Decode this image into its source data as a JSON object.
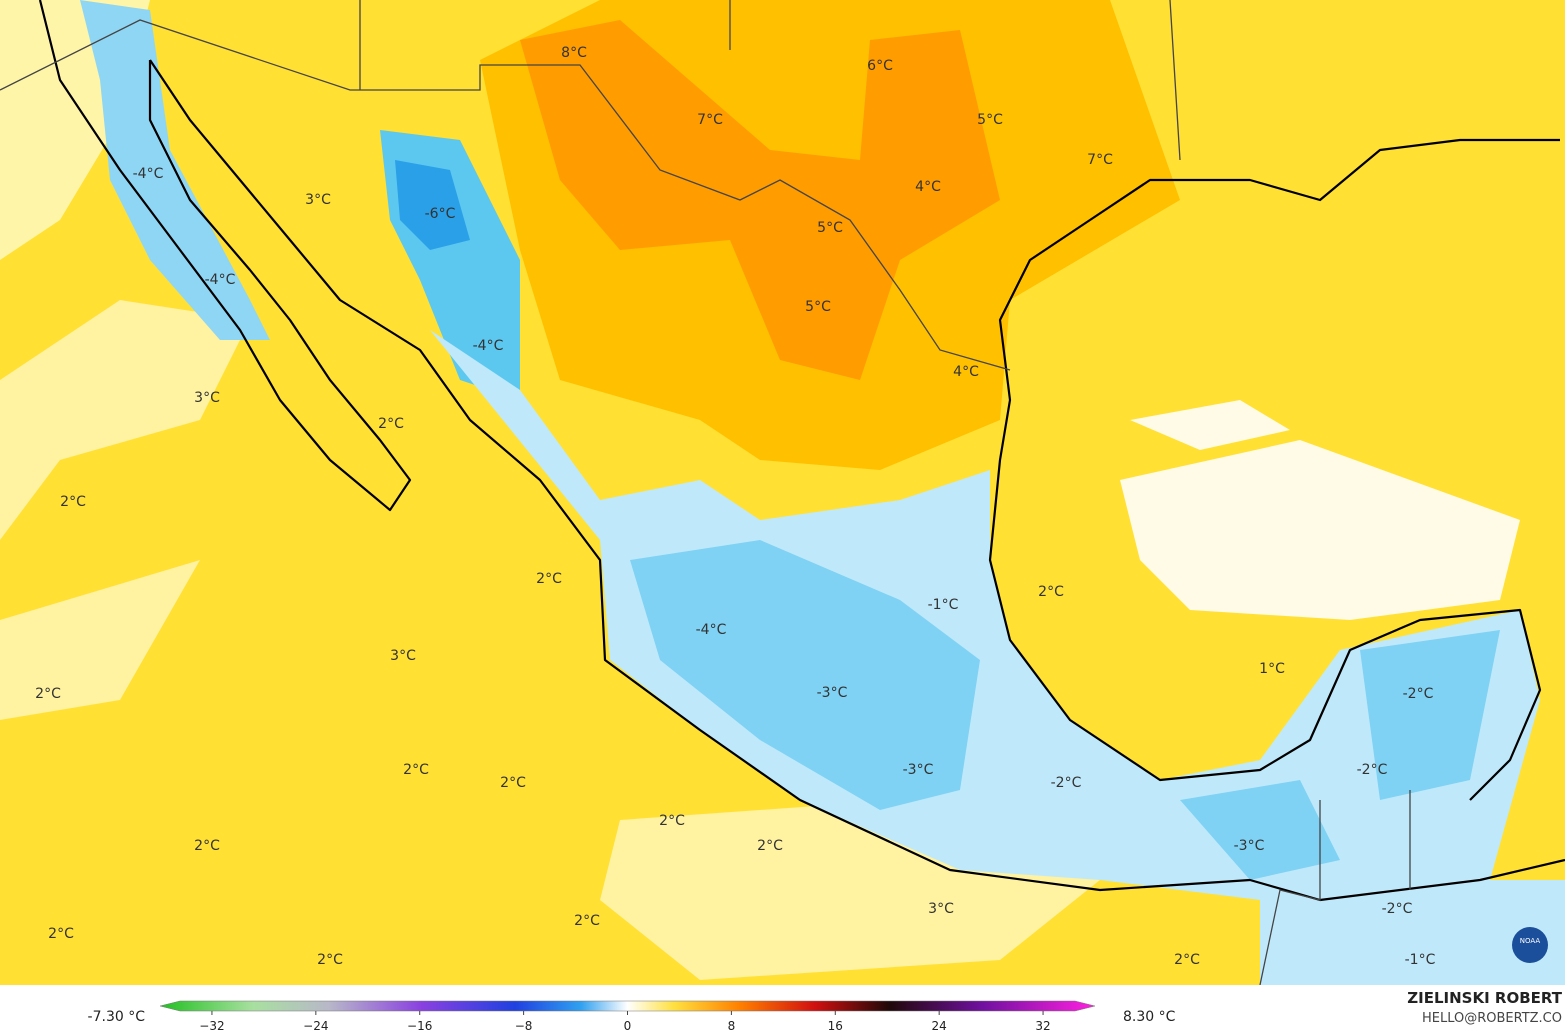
{
  "map": {
    "labels": [
      "8°C",
      "6°C",
      "7°C",
      "5°C",
      "7°C",
      "-4°C",
      "4°C",
      "3°C",
      "-6°C",
      "5°C",
      "-4°C",
      "5°C",
      "-4°C",
      "4°C",
      "3°C",
      "2°C",
      "2°C",
      "2°C",
      "2°C",
      "-1°C",
      "-4°C",
      "3°C",
      "1°C",
      "-3°C",
      "2°C",
      "-2°C",
      "-3°C",
      "2°C",
      "-2°C",
      "2°C",
      "-2°C",
      "2°C",
      "2°C",
      "2°C",
      "-3°C",
      "3°C",
      "-2°C",
      "2°C",
      "2°C",
      "2°C",
      "2°C",
      "-1°C"
    ]
  },
  "colorbar": {
    "min_label": "-7.30 °C",
    "max_label": "8.30 °C",
    "lim": [
      -36,
      36
    ],
    "ticks": [
      {
        "value": -32,
        "label": "−32"
      },
      {
        "value": -24,
        "label": "−24"
      },
      {
        "value": -16,
        "label": "−16"
      },
      {
        "value": -8,
        "label": "−8"
      },
      0,
      8,
      16,
      24,
      32
    ]
  },
  "credit": {
    "author": "ZIELINSKI ROBERT",
    "contact": "HELLO@ROBERTZ.CO",
    "logo": "NOAA"
  }
}
